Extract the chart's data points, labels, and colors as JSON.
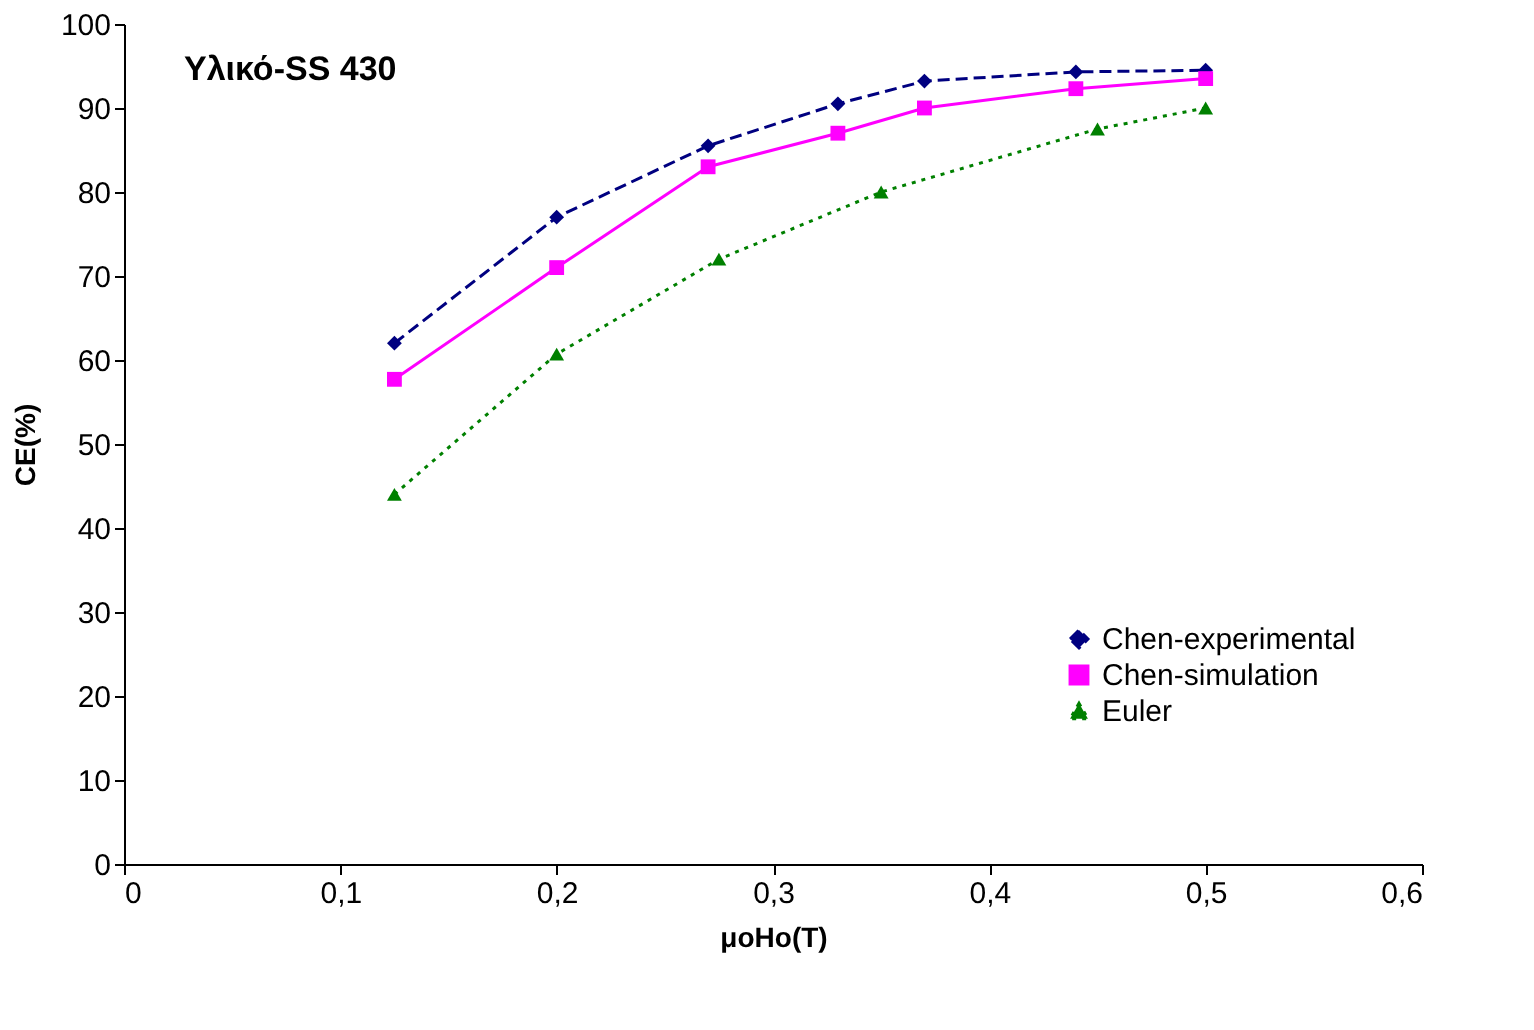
{
  "chart_data": {
    "type": "line",
    "title": "Υλικό-SS 430",
    "xlabel": "μoHo(T)",
    "ylabel": "CE(%)",
    "xlim": [
      0,
      0.6
    ],
    "ylim": [
      0,
      100
    ],
    "xticks": [
      0,
      {
        "value": 0.1,
        "label": "0,1"
      },
      {
        "value": 0.2,
        "label": "0,2"
      },
      {
        "value": 0.3,
        "label": "0,3"
      },
      {
        "value": 0.4,
        "label": "0,4"
      },
      {
        "value": 0.5,
        "label": "0,5"
      },
      {
        "value": 0.6,
        "label": "0,6"
      }
    ],
    "yticks": [
      0,
      10,
      20,
      30,
      40,
      50,
      60,
      70,
      80,
      90,
      100
    ],
    "grid": false,
    "legend": "bottom right",
    "series": [
      {
        "name": "Chen-experimental",
        "color": "#000080",
        "marker": "diamond",
        "line_style": "dashed",
        "x": [
          0.125,
          0.2,
          0.27,
          0.33,
          0.37,
          0.44,
          0.5
        ],
        "values": [
          62,
          77,
          85.5,
          90.5,
          93.2,
          94.3,
          94.5
        ]
      },
      {
        "name": "Chen-simulation",
        "color": "#ff00ff",
        "marker": "square",
        "line_style": "solid",
        "x": [
          0.125,
          0.2,
          0.27,
          0.33,
          0.37,
          0.44,
          0.5
        ],
        "values": [
          57.7,
          71,
          83,
          87,
          90,
          92.3,
          93.5
        ]
      },
      {
        "name": "Euler",
        "color": "#008000",
        "marker": "triangle",
        "line_style": "dotted",
        "x": [
          0.125,
          0.2,
          0.275,
          0.35,
          0.45,
          0.5
        ],
        "values": [
          44,
          60.7,
          72,
          80,
          87.5,
          90
        ]
      }
    ]
  }
}
